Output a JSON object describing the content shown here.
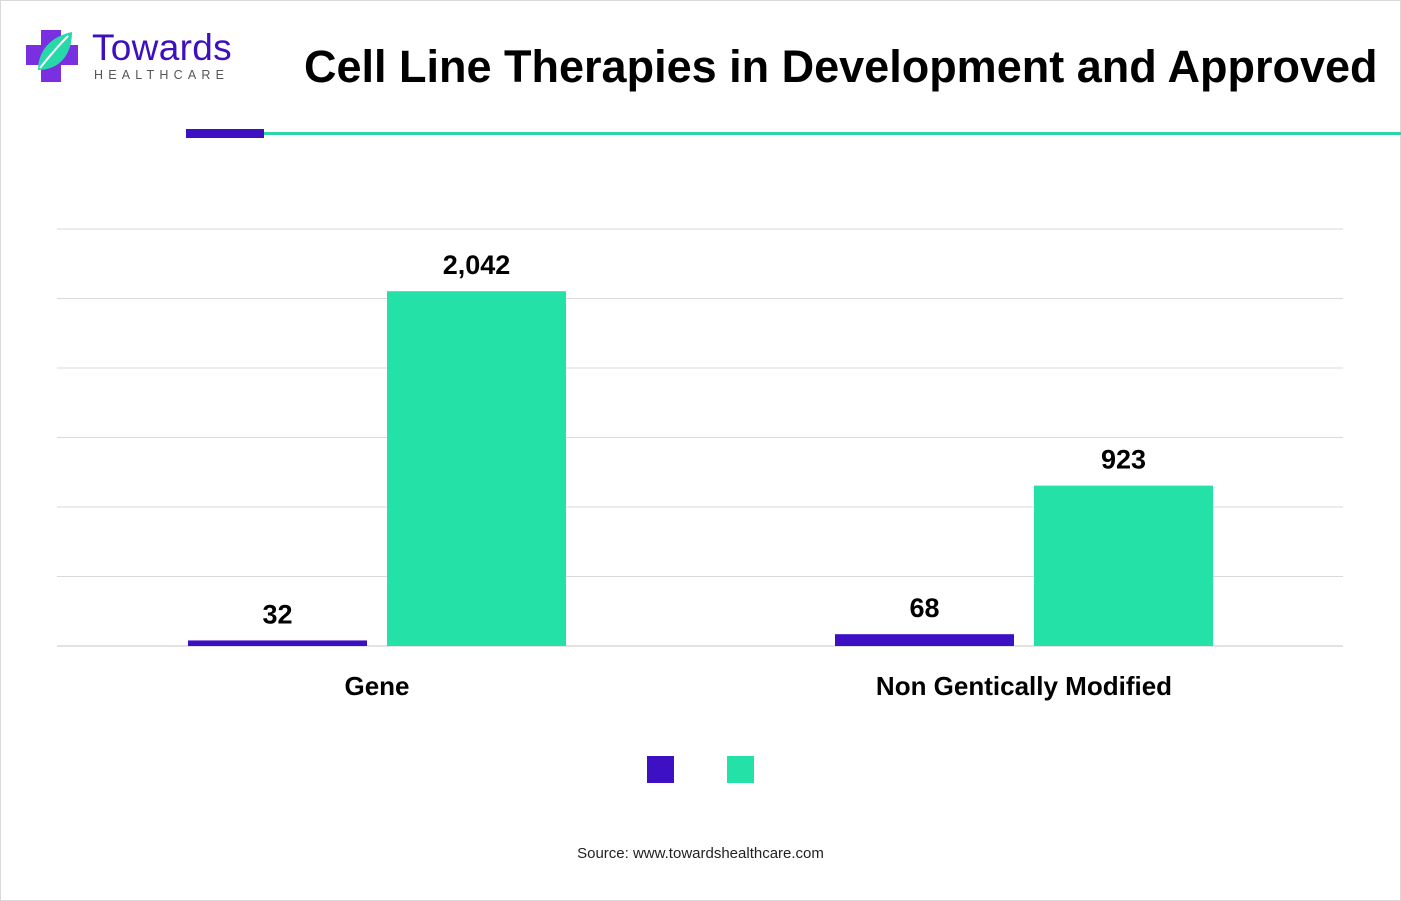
{
  "header": {
    "logo_name": "Towards",
    "logo_sub": "HEALTHCARE",
    "title": "Cell Line Therapies in Development and Approved"
  },
  "colors": {
    "series_1": "#3e10c3",
    "series_2": "#24e2a7",
    "grid": "#d9d9d9",
    "accent_line": "#2ed4a8"
  },
  "chart_data": {
    "type": "bar",
    "title": "Cell Line Therapies in Development and Approved",
    "categories": [
      "Gene",
      "Non Gentically Modified"
    ],
    "series": [
      {
        "values": [
          32,
          68
        ],
        "labels": [
          "32",
          "68"
        ]
      },
      {
        "values": [
          2042,
          923
        ],
        "labels": [
          "2,042",
          "923"
        ]
      }
    ],
    "ylim": [
      0,
      2400
    ],
    "grid": true,
    "legend": "bottom-center",
    "xlabel": "",
    "ylabel": ""
  },
  "source": "Source: www.towardshealthcare.com"
}
